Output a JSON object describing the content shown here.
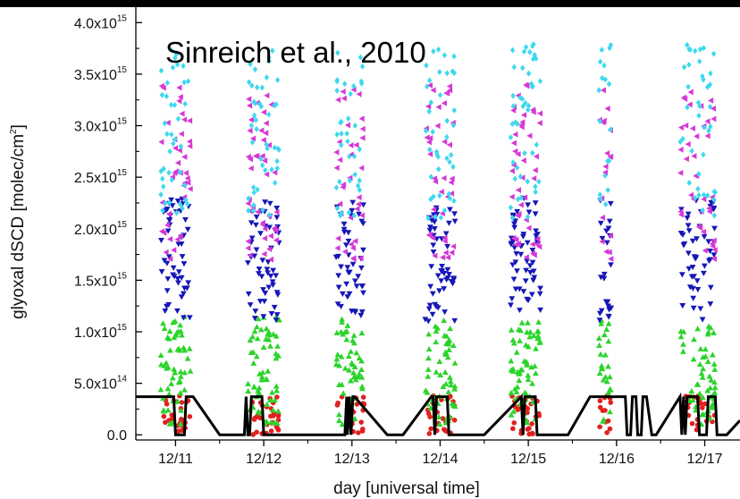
{
  "chart_data": {
    "type": "scatter",
    "title": "",
    "annotation": "Sinreich et al., 2010",
    "xlabel": "day [universal time]",
    "ylabel": "glyoxal dSCD [molec/cm",
    "ylabel_sup": "2",
    "ylabel_end": "]",
    "xlim": [
      10.55,
      17.4
    ],
    "ylim": [
      -50000000000000.0,
      4150000000000000.0
    ],
    "x_ticks": [
      {
        "value": 11,
        "label": "12/11"
      },
      {
        "value": 12,
        "label": "12/12"
      },
      {
        "value": 13,
        "label": "12/13"
      },
      {
        "value": 14,
        "label": "12/14"
      },
      {
        "value": 15,
        "label": "12/15"
      },
      {
        "value": 16,
        "label": "12/16"
      },
      {
        "value": 17,
        "label": "12/17"
      }
    ],
    "y_ticks": [
      {
        "value": 0,
        "base": "0.0",
        "exp": ""
      },
      {
        "value": 500000000000000.0,
        "base": "5.0x10",
        "exp": "14"
      },
      {
        "value": 1000000000000000.0,
        "base": "1.0x10",
        "exp": "15"
      },
      {
        "value": 1500000000000000.0,
        "base": "1.5x10",
        "exp": "15"
      },
      {
        "value": 2000000000000000.0,
        "base": "2.0x10",
        "exp": "15"
      },
      {
        "value": 2500000000000000.0,
        "base": "2.5x10",
        "exp": "15"
      },
      {
        "value": 3000000000000000.0,
        "base": "3.0x10",
        "exp": "15"
      },
      {
        "value": 3500000000000000.0,
        "base": "3.5x10",
        "exp": "15"
      },
      {
        "value": 4000000000000000.0,
        "base": "4.0x10",
        "exp": "15"
      }
    ],
    "grid": false,
    "legend": "none",
    "days": [
      {
        "center": 11.0,
        "width": 0.34,
        "density": 1.0
      },
      {
        "center": 12.0,
        "width": 0.36,
        "density": 1.1
      },
      {
        "center": 12.98,
        "width": 0.32,
        "density": 0.9
      },
      {
        "center": 14.0,
        "width": 0.34,
        "density": 1.0
      },
      {
        "center": 14.97,
        "width": 0.34,
        "density": 1.1
      },
      {
        "center": 15.87,
        "width": 0.14,
        "density": 0.45
      },
      {
        "center": 16.92,
        "width": 0.4,
        "density": 1.0
      }
    ],
    "series": [
      {
        "color": "#e0211e",
        "marker": "circle",
        "band": [
          0.0,
          380000000000000.0
        ],
        "count": 28
      },
      {
        "color": "#2bd42b",
        "marker": "triangle-up",
        "band": [
          100000000000000.0,
          1150000000000000.0
        ],
        "count": 55
      },
      {
        "color": "#1616b8",
        "marker": "triangle-down",
        "band": [
          1100000000000000.0,
          2300000000000000.0
        ],
        "count": 50
      },
      {
        "color": "#d638d6",
        "marker": "triangle-left",
        "band": [
          1700000000000000.0,
          3400000000000000.0
        ],
        "count": 40
      },
      {
        "color": "#3ed8ee",
        "marker": "diamond",
        "band": [
          2100000000000000.0,
          3800000000000000.0
        ],
        "count": 40
      }
    ],
    "reference_line": {
      "color": "#000000",
      "points": [
        [
          10.55,
          370000000000000.0
        ],
        [
          10.98,
          370000000000000.0
        ],
        [
          11.0,
          0
        ],
        [
          11.1,
          0
        ],
        [
          11.12,
          370000000000000.0
        ],
        [
          11.2,
          370000000000000.0
        ],
        [
          11.5,
          0
        ],
        [
          11.78,
          0
        ],
        [
          11.8,
          370000000000000.0
        ],
        [
          11.82,
          0
        ],
        [
          11.84,
          0
        ],
        [
          11.86,
          370000000000000.0
        ],
        [
          11.98,
          370000000000000.0
        ],
        [
          12.0,
          0
        ],
        [
          12.5,
          0
        ],
        [
          12.92,
          0
        ],
        [
          12.94,
          370000000000000.0
        ],
        [
          12.95,
          0
        ],
        [
          12.97,
          370000000000000.0
        ],
        [
          12.99,
          0
        ],
        [
          13.01,
          370000000000000.0
        ],
        [
          13.03,
          370000000000000.0
        ],
        [
          13.4,
          0
        ],
        [
          13.58,
          0
        ],
        [
          13.9,
          370000000000000.0
        ],
        [
          13.92,
          370000000000000.0
        ],
        [
          13.94,
          0
        ],
        [
          13.96,
          370000000000000.0
        ],
        [
          14.08,
          370000000000000.0
        ],
        [
          14.1,
          0
        ],
        [
          14.5,
          0
        ],
        [
          14.92,
          370000000000000.0
        ],
        [
          14.94,
          0
        ],
        [
          14.96,
          370000000000000.0
        ],
        [
          15.08,
          370000000000000.0
        ],
        [
          15.1,
          0
        ],
        [
          15.45,
          0
        ],
        [
          15.7,
          370000000000000.0
        ],
        [
          16.1,
          370000000000000.0
        ],
        [
          16.12,
          0
        ],
        [
          16.16,
          0
        ],
        [
          16.18,
          370000000000000.0
        ],
        [
          16.22,
          370000000000000.0
        ],
        [
          16.24,
          0
        ],
        [
          16.28,
          0
        ],
        [
          16.3,
          370000000000000.0
        ],
        [
          16.34,
          370000000000000.0
        ],
        [
          16.4,
          0
        ],
        [
          16.45,
          0
        ],
        [
          16.72,
          370000000000000.0
        ],
        [
          16.74,
          0
        ],
        [
          16.76,
          370000000000000.0
        ],
        [
          16.78,
          0
        ],
        [
          16.8,
          370000000000000.0
        ],
        [
          16.92,
          370000000000000.0
        ],
        [
          16.94,
          0
        ],
        [
          17.02,
          0
        ],
        [
          17.04,
          370000000000000.0
        ],
        [
          17.12,
          370000000000000.0
        ],
        [
          17.14,
          0
        ],
        [
          17.25,
          0
        ],
        [
          17.4,
          140000000000000.0
        ]
      ]
    }
  }
}
